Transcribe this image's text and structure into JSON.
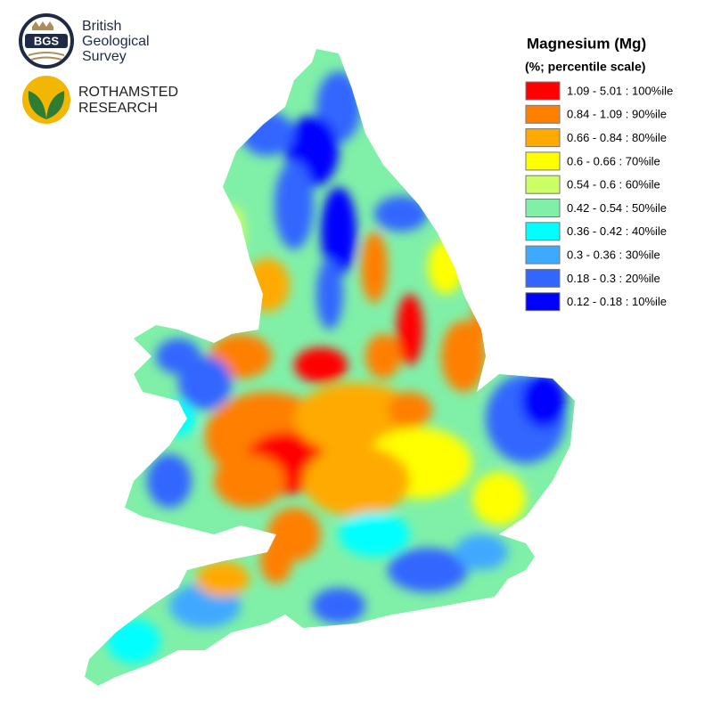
{
  "logos": {
    "bgs": {
      "badge": "BGS",
      "lines": [
        "British",
        "Geological",
        "Survey"
      ]
    },
    "rothamsted": {
      "lines": [
        "ROTHAMSTED",
        "RESEARCH"
      ]
    }
  },
  "legend": {
    "title": "Magnesium (Mg)",
    "subtitle": "(%; percentile scale)",
    "items": [
      {
        "label": "1.09 - 5.01 : 100%ile",
        "color": "#ff0000"
      },
      {
        "label": "0.84 - 1.09 : 90%ile",
        "color": "#ff7f00"
      },
      {
        "label": "0.66 - 0.84 : 80%ile",
        "color": "#ffaa00"
      },
      {
        "label": "0.6 - 0.66 : 70%ile",
        "color": "#ffff00"
      },
      {
        "label": "0.54 - 0.6 : 60%ile",
        "color": "#ccff66"
      },
      {
        "label": "0.42 - 0.54 : 50%ile",
        "color": "#80f0a8"
      },
      {
        "label": "0.36 - 0.42 : 40%ile",
        "color": "#00ffff"
      },
      {
        "label": "0.3 - 0.36 : 30%ile",
        "color": "#3fa9ff"
      },
      {
        "label": "0.18 - 0.3 : 20%ile",
        "color": "#3366ff"
      },
      {
        "label": "0.12 - 0.18 : 10%ile",
        "color": "#0000ff"
      }
    ]
  }
}
